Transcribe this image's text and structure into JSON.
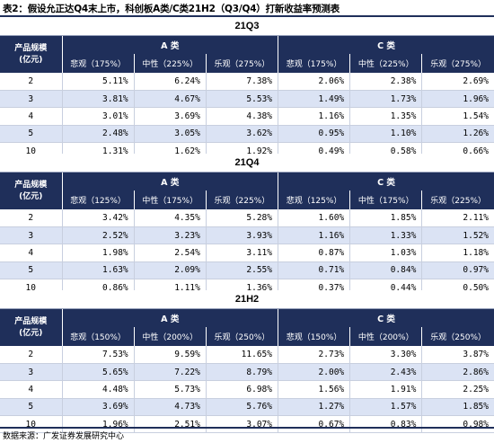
{
  "title": "表2：假设允正达Q4末上市，科创板A类/C类21H2（Q3/Q4）打新收益率预测表",
  "source": "数据来源：广发证券发展研究中心",
  "colors": {
    "header_bg": "#1f2f5a",
    "alt_row_bg": "#dbe3f4"
  },
  "tables": [
    {
      "period": "21Q3",
      "scale_label": "产品规模",
      "scale_unit": "(亿元)",
      "class_a": "A 类",
      "class_c": "C 类",
      "scenarios": [
        "悲观（175%）",
        "中性（225%）",
        "乐观（275%）",
        "悲观（175%）",
        "中性（225%）",
        "乐观（275%）"
      ],
      "rows": [
        [
          "2",
          "5.11%",
          "6.24%",
          "7.38%",
          "2.06%",
          "2.38%",
          "2.69%"
        ],
        [
          "3",
          "3.81%",
          "4.67%",
          "5.53%",
          "1.49%",
          "1.73%",
          "1.96%"
        ],
        [
          "4",
          "3.01%",
          "3.69%",
          "4.38%",
          "1.16%",
          "1.35%",
          "1.54%"
        ],
        [
          "5",
          "2.48%",
          "3.05%",
          "3.62%",
          "0.95%",
          "1.10%",
          "1.26%"
        ],
        [
          "10",
          "1.31%",
          "1.62%",
          "1.92%",
          "0.49%",
          "0.58%",
          "0.66%"
        ]
      ]
    },
    {
      "period": "21Q4",
      "scale_label": "产品规模",
      "scale_unit": "(亿元)",
      "class_a": "A 类",
      "class_c": "C 类",
      "scenarios": [
        "悲观（125%）",
        "中性（175%）",
        "乐观（225%）",
        "悲观（125%）",
        "中性（175%）",
        "乐观（225%）"
      ],
      "rows": [
        [
          "2",
          "3.42%",
          "4.35%",
          "5.28%",
          "1.60%",
          "1.85%",
          "2.11%"
        ],
        [
          "3",
          "2.52%",
          "3.23%",
          "3.93%",
          "1.16%",
          "1.33%",
          "1.52%"
        ],
        [
          "4",
          "1.98%",
          "2.54%",
          "3.11%",
          "0.87%",
          "1.03%",
          "1.18%"
        ],
        [
          "5",
          "1.63%",
          "2.09%",
          "2.55%",
          "0.71%",
          "0.84%",
          "0.97%"
        ],
        [
          "10",
          "0.86%",
          "1.11%",
          "1.36%",
          "0.37%",
          "0.44%",
          "0.50%"
        ]
      ]
    },
    {
      "period": "21H2",
      "scale_label": "产品规模",
      "scale_unit": "(亿元)",
      "class_a": "A 类",
      "class_c": "C 类",
      "scenarios": [
        "悲观（150%）",
        "中性（200%）",
        "乐观（250%）",
        "悲观（150%）",
        "中性（200%）",
        "乐观（250%）"
      ],
      "rows": [
        [
          "2",
          "7.53%",
          "9.59%",
          "11.65%",
          "2.73%",
          "3.30%",
          "3.87%"
        ],
        [
          "3",
          "5.65%",
          "7.22%",
          "8.79%",
          "2.00%",
          "2.43%",
          "2.86%"
        ],
        [
          "4",
          "4.48%",
          "5.73%",
          "6.98%",
          "1.56%",
          "1.91%",
          "2.25%"
        ],
        [
          "5",
          "3.69%",
          "4.73%",
          "5.76%",
          "1.27%",
          "1.57%",
          "1.85%"
        ],
        [
          "10",
          "1.96%",
          "2.51%",
          "3.07%",
          "0.67%",
          "0.83%",
          "0.98%"
        ]
      ]
    }
  ]
}
